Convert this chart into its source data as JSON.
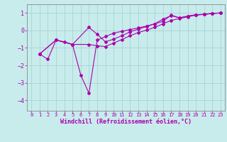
{
  "xlabel": "Windchill (Refroidissement éolien,°C)",
  "bg_color": "#c8ecec",
  "grid_color": "#a8d4d4",
  "line_color": "#aa00aa",
  "spine_color": "#888888",
  "xlim": [
    -0.5,
    23.5
  ],
  "ylim": [
    -4.6,
    1.5
  ],
  "yticks": [
    -4,
    -3,
    -2,
    -1,
    0,
    1
  ],
  "xticks": [
    0,
    1,
    2,
    3,
    4,
    5,
    6,
    7,
    8,
    9,
    10,
    11,
    12,
    13,
    14,
    15,
    16,
    17,
    18,
    19,
    20,
    21,
    22,
    23
  ],
  "line1_x": [
    1,
    2,
    3,
    4,
    5,
    6,
    7,
    8,
    9,
    10,
    11,
    12,
    13,
    14,
    15,
    16,
    17,
    18,
    19,
    20,
    21,
    22,
    23
  ],
  "line1_y": [
    -1.35,
    -1.65,
    -0.55,
    -0.65,
    -0.8,
    -2.55,
    -3.6,
    -0.55,
    -0.35,
    -0.15,
    -0.05,
    0.05,
    0.15,
    0.25,
    0.38,
    0.65,
    0.85,
    0.72,
    0.82,
    0.9,
    0.92,
    0.98,
    1.0
  ],
  "line2_x": [
    1,
    3,
    5,
    7,
    8,
    9,
    10,
    11,
    12,
    13,
    14,
    15,
    16,
    17,
    18,
    19,
    20,
    21,
    22,
    23
  ],
  "line2_y": [
    -1.35,
    -0.55,
    -0.8,
    0.18,
    -0.22,
    -0.65,
    -0.5,
    -0.3,
    -0.08,
    0.08,
    0.22,
    0.38,
    0.52,
    0.88,
    0.72,
    0.82,
    0.9,
    0.92,
    0.98,
    1.0
  ],
  "line3_x": [
    1,
    3,
    5,
    7,
    8,
    9,
    10,
    11,
    12,
    13,
    14,
    15,
    16,
    17,
    18,
    19,
    20,
    21,
    22,
    23
  ],
  "line3_y": [
    -1.35,
    -0.55,
    -0.8,
    -0.8,
    -0.88,
    -0.92,
    -0.72,
    -0.52,
    -0.3,
    -0.12,
    0.02,
    0.18,
    0.38,
    0.58,
    0.68,
    0.78,
    0.88,
    0.92,
    0.97,
    1.0
  ],
  "xlabel_fontsize": 6,
  "ytick_fontsize": 6,
  "xtick_fontsize": 5
}
